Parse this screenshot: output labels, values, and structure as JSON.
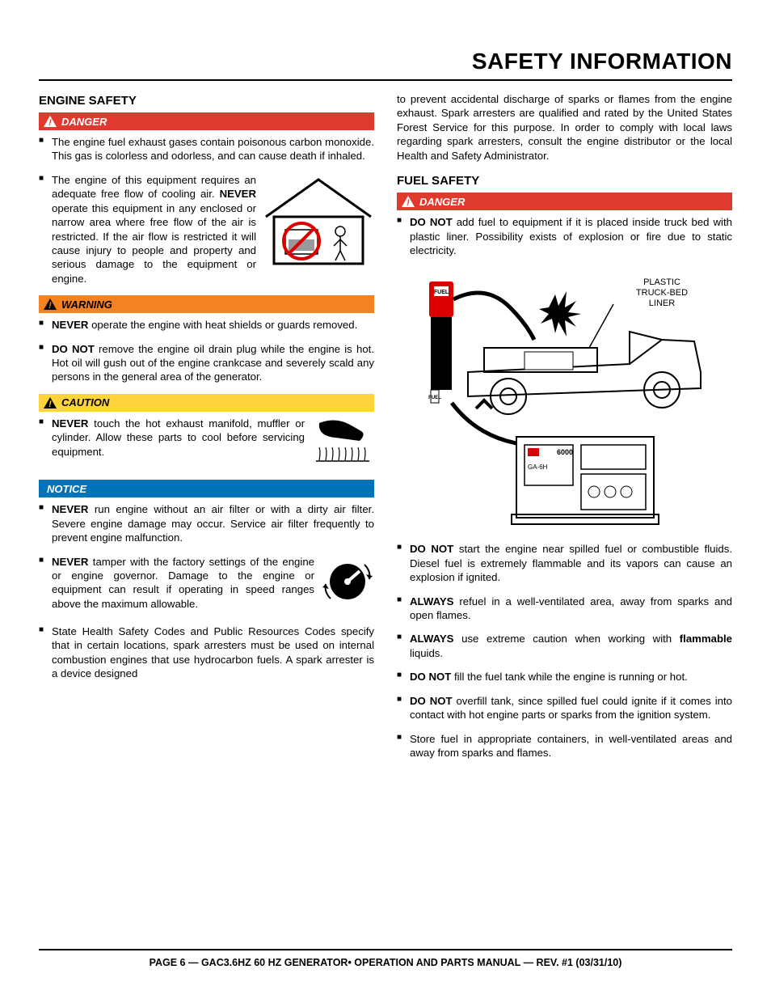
{
  "pageTitle": "SAFETY INFORMATION",
  "footer": "PAGE 6 — GAC3.6HZ 60 HZ GENERATOR• OPERATION AND PARTS MANUAL — REV. #1 (03/31/10)",
  "alertLabels": {
    "danger": "DANGER",
    "warning": "WARNING",
    "caution": "CAUTION",
    "notice": "NOTICE"
  },
  "alertColors": {
    "danger_bg": "#e03a2e",
    "warning_bg": "#f58220",
    "caution_bg": "#ffd33a",
    "notice_bg": "#0073b8"
  },
  "left": {
    "heading": "ENGINE SAFETY",
    "danger_items": [
      {
        "parts": [
          {
            "t": "The engine fuel exhaust gases contain poisonous carbon monoxide. This gas is colorless and odorless, and can cause death if inhaled."
          }
        ]
      },
      {
        "parts": [
          {
            "t": "The engine of this equipment requires an adequate free flow of cooling air. "
          },
          {
            "t": "NEVER",
            "b": true
          },
          {
            "t": " operate this equipment in any enclosed or narrow area where free flow of the air is restricted. If the air flow is restricted it will cause injury to people and property and serious damage to the equipment or engine."
          }
        ],
        "figure": "enclosed-area"
      }
    ],
    "warning_items": [
      {
        "parts": [
          {
            "t": "NEVER",
            "b": true
          },
          {
            "t": " operate the engine with heat shields or guards removed."
          }
        ]
      },
      {
        "parts": [
          {
            "t": "DO NOT",
            "b": true
          },
          {
            "t": " remove the engine oil drain plug while the engine is hot. Hot oil will gush out of the engine crankcase and severely scald any persons in the general area of the generator."
          }
        ]
      }
    ],
    "caution_items": [
      {
        "parts": [
          {
            "t": "NEVER",
            "b": true
          },
          {
            "t": " touch the hot exhaust manifold, muffler or cylinder. Allow these parts to cool before servicing equipment."
          }
        ],
        "figure": "hot-surface"
      }
    ],
    "notice_items": [
      {
        "parts": [
          {
            "t": "NEVER",
            "b": true
          },
          {
            "t": " run engine without an air filter or with a dirty air filter. Severe engine damage may occur. Service air filter frequently to prevent engine malfunction."
          }
        ]
      },
      {
        "parts": [
          {
            "t": "NEVER",
            "b": true
          },
          {
            "t": " tamper with the factory settings of the engine or engine governor. Damage to the engine or equipment can result if operating in speed ranges above the maximum allowable."
          }
        ],
        "figure": "governor-dial"
      },
      {
        "parts": [
          {
            "t": "State Health Safety Codes and Public Resources Codes specify that in certain locations, spark arresters must be used on internal combustion engines that use hydrocarbon fuels. A spark arrester is a device designed"
          }
        ]
      }
    ]
  },
  "right": {
    "continuation": "to prevent accidental discharge of sparks or flames from the engine exhaust. Spark arresters are qualified and rated by the United States Forest Service for this purpose. In order to comply with local laws regarding spark arresters, consult the engine distributor or the local Health and Safety Administrator.",
    "heading": "FUEL SAFETY",
    "danger_items": [
      {
        "parts": [
          {
            "t": "DO NOT",
            "b": true
          },
          {
            "t": " add fuel to equipment if it is placed inside truck bed with plastic liner. Possibility exists of explosion or fire due to static electricity."
          }
        ],
        "figure_below": "truck-bed"
      },
      {
        "parts": [
          {
            "t": "DO NOT",
            "b": true
          },
          {
            "t": " start the engine near spilled fuel or combustible fluids. Diesel fuel is extremely flammable and its vapors can cause an explosion if ignited."
          }
        ]
      },
      {
        "parts": [
          {
            "t": "ALWAYS",
            "b": true
          },
          {
            "t": " refuel in a well-ventilated area, away from sparks and open flames."
          }
        ]
      },
      {
        "parts": [
          {
            "t": "ALWAYS",
            "b": true
          },
          {
            "t": " use extreme caution when working with "
          },
          {
            "t": "flammable",
            "b": true
          },
          {
            "t": " liquids."
          }
        ]
      },
      {
        "parts": [
          {
            "t": "DO NOT",
            "b": true
          },
          {
            "t": " fill the fuel tank while the engine is running or hot."
          }
        ]
      },
      {
        "parts": [
          {
            "t": "DO NOT",
            "b": true
          },
          {
            "t": " overfill tank, since spilled fuel could ignite if it comes into contact with hot engine parts or sparks from the ignition system."
          }
        ]
      },
      {
        "parts": [
          {
            "t": "Store fuel in appropriate containers, in well-ventilated areas and away from sparks and flames."
          }
        ]
      }
    ],
    "truck_label": "PLASTIC\nTRUCK-BED\nLINER"
  }
}
